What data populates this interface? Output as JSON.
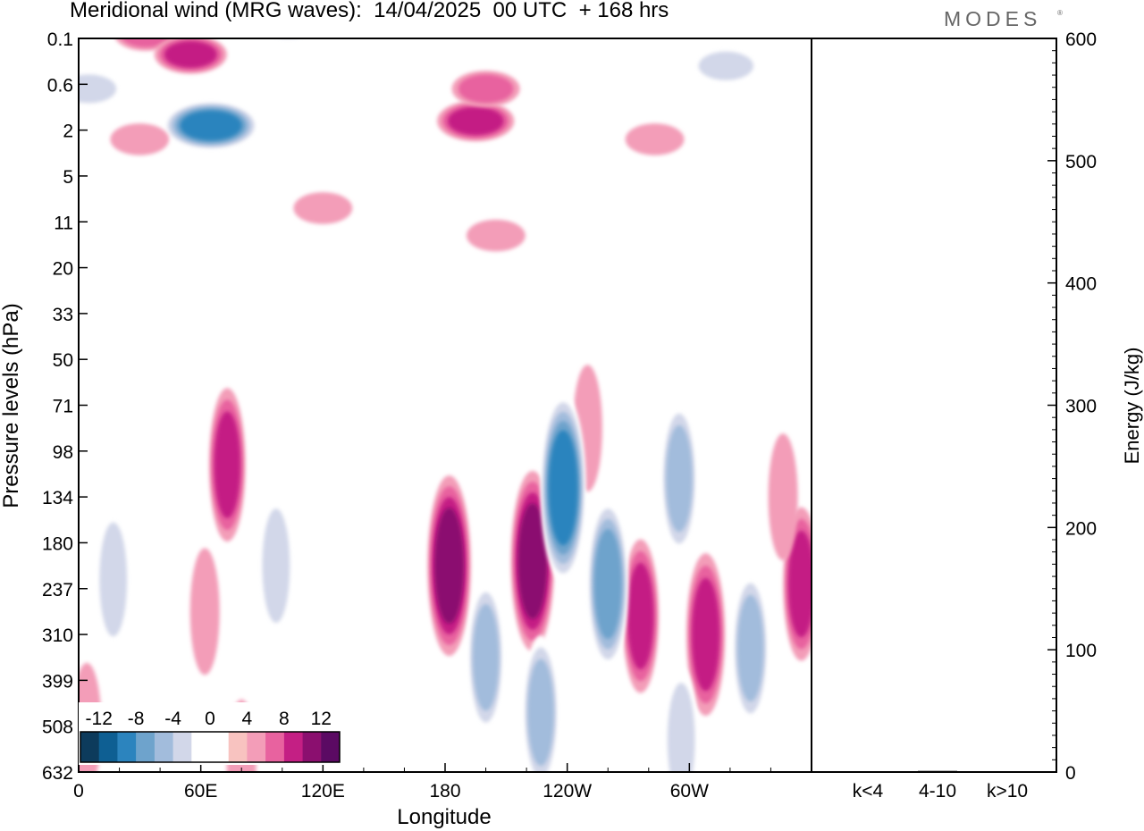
{
  "title": "Meridional wind (MRG waves):  14/04/2025  00 UTC  + 168 hrs",
  "brand": "MODES",
  "brand_mark": "®",
  "chart_data": [
    {
      "type": "heatmap",
      "title": "Meridional wind (MRG waves):  14/04/2025  00 UTC  + 168 hrs",
      "xlabel": "Longitude",
      "ylabel": "Pressure levels (hPa)",
      "x_ticks": [
        "0",
        "60E",
        "120E",
        "180",
        "120W",
        "60W"
      ],
      "x_tick_positions_deg": [
        0,
        60,
        120,
        180,
        240,
        300
      ],
      "xlim_deg": [
        0,
        360
      ],
      "y_ticks": [
        "0.1",
        "0.6",
        "2",
        "5",
        "11",
        "20",
        "33",
        "50",
        "71",
        "98",
        "134",
        "180",
        "237",
        "310",
        "399",
        "508",
        "632"
      ],
      "y_axis": "pressure levels (reversed, top = 0.1 hPa)",
      "colorbar": {
        "labels": [
          "-12",
          "-8",
          "-4",
          "0",
          "4",
          "8",
          "12"
        ],
        "levels": [
          -16,
          -14,
          -12,
          -10,
          -8,
          -6,
          -4,
          -2,
          0,
          2,
          4,
          6,
          8,
          10,
          12,
          14,
          16
        ],
        "colors": [
          "#0d3b5c",
          "#0e5f93",
          "#2c84be",
          "#6ea3cc",
          "#a2bcdc",
          "#d2d7e9",
          "#ffffff",
          "#ffffff",
          "#f8c3c0",
          "#f39db8",
          "#e8629f",
          "#c41f84",
          "#8b0f6f",
          "#5b0a63"
        ]
      },
      "contours": [
        {
          "lon": 65,
          "lev": 1.9,
          "value": -11
        },
        {
          "lon": 5,
          "lev": 1.1,
          "value": -5
        },
        {
          "lon": 103,
          "lev": -0.3,
          "value": -4
        },
        {
          "lon": 318,
          "lev": 0.6,
          "value": -5
        },
        {
          "lon": 340,
          "lev": 1.2,
          "value": -3
        },
        {
          "lon": 33,
          "lev": -0.1,
          "value": 4
        },
        {
          "lon": 55,
          "lev": 0.35,
          "value": 6
        },
        {
          "lon": 195,
          "lev": 1.8,
          "value": 7
        },
        {
          "lon": 200,
          "lev": 1.1,
          "value": 5
        },
        {
          "lon": 30,
          "lev": 2.2,
          "value": 3
        },
        {
          "lon": 120,
          "lev": 3.7,
          "value": 3
        },
        {
          "lon": 205,
          "lev": 4.3,
          "value": 3
        },
        {
          "lon": 283,
          "lev": 2.2,
          "value": 3
        },
        {
          "lon": 73,
          "lev": 9.3,
          "value": 6
        },
        {
          "lon": 182,
          "lev": 11.5,
          "value": 9
        },
        {
          "lon": 223,
          "lev": 11.4,
          "value": 9
        },
        {
          "lon": 276,
          "lev": 12.6,
          "value": 6
        },
        {
          "lon": 308,
          "lev": 13.0,
          "value": 7
        },
        {
          "lon": 355,
          "lev": 11.9,
          "value": 6
        },
        {
          "lon": 346,
          "lev": 10.0,
          "value": 3
        },
        {
          "lon": 250,
          "lev": 8.5,
          "value": 3
        },
        {
          "lon": 62,
          "lev": 12.5,
          "value": 3
        },
        {
          "lon": 4,
          "lev": 15.0,
          "value": 3
        },
        {
          "lon": 80,
          "lev": 15.8,
          "value": 3
        },
        {
          "lon": 17,
          "lev": 11.8,
          "value": -5
        },
        {
          "lon": 45,
          "lev": 9.5,
          "value": -3
        },
        {
          "lon": 97,
          "lev": 11.5,
          "value": -5
        },
        {
          "lon": 200,
          "lev": 13.5,
          "value": -6
        },
        {
          "lon": 238,
          "lev": 9.8,
          "value": -10
        },
        {
          "lon": 260,
          "lev": 11.9,
          "value": -8
        },
        {
          "lon": 295,
          "lev": 9.6,
          "value": -6
        },
        {
          "lon": 330,
          "lev": 13.3,
          "value": -6
        },
        {
          "lon": 227,
          "lev": 14.7,
          "value": -6
        },
        {
          "lon": 296,
          "lev": 15.3,
          "value": -5
        },
        {
          "lon": 110,
          "lev": 7.6,
          "value": -3
        },
        {
          "lon": 330,
          "lev": 5.9,
          "value": -3
        },
        {
          "lon": 15,
          "lev": 6.6,
          "value": -3
        }
      ]
    },
    {
      "type": "bar",
      "ylabel": "Energy (J/kg)",
      "categories": [
        "k<4",
        "4-10",
        "k>10"
      ],
      "values": [
        0,
        1,
        0
      ],
      "ylim": [
        0,
        600
      ],
      "y_ticks": [
        "0",
        "100",
        "200",
        "300",
        "400",
        "500",
        "600"
      ]
    }
  ]
}
